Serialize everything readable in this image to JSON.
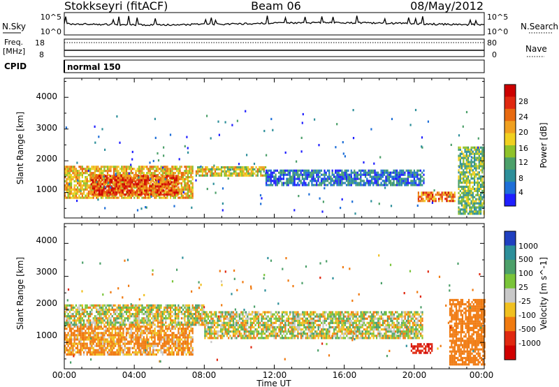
{
  "header": {
    "station": "Stokkseyri (fitACF)",
    "beam": "Beam 06",
    "date": "08/May/2012"
  },
  "noise_panel": {
    "left_label": "N.Sky",
    "right_label": "N.Search",
    "left_ticks": [
      "10^5",
      "10^0"
    ],
    "right_ticks": [
      "10^5",
      "10^0"
    ]
  },
  "freq_panel": {
    "left_label_1": "Freq.",
    "left_label_2": "[MHz]",
    "left_ticks": [
      "18",
      "8"
    ],
    "right_ticks": [
      "80",
      "0"
    ],
    "right_label": "Nave"
  },
  "cpid_panel": {
    "label": "CPID",
    "program": "normal 150"
  },
  "axes": {
    "xlabel": "Time UT",
    "ylabel": "Slant Range [km]",
    "xticks": [
      "00:00",
      "04:00",
      "08:00",
      "12:00",
      "16:00",
      "20:00",
      "00:00"
    ],
    "yticks": [
      "1000",
      "2000",
      "3000",
      "4000"
    ]
  },
  "power_colorbar": {
    "label": "Power [dB]",
    "ticks": [
      "4",
      "8",
      "12",
      "16",
      "20",
      "24",
      "28"
    ],
    "colors": [
      "#1f1fff",
      "#1e6fd8",
      "#2d8f9a",
      "#4ca06a",
      "#8fc22a",
      "#f0d020",
      "#f0a020",
      "#e86a10",
      "#e02810",
      "#cc0000"
    ]
  },
  "velocity_colorbar": {
    "label": "Velocity [m s^-1]",
    "ticks": [
      "1000",
      "500",
      "100",
      "25",
      "-25",
      "-100",
      "-500",
      "-1000"
    ],
    "colors": [
      "#2040c0",
      "#2d8f9a",
      "#4ca06a",
      "#7ac43a",
      "#c8c8c8",
      "#f0c020",
      "#f07a10",
      "#e02810",
      "#d00000"
    ]
  },
  "chart_data": [
    {
      "type": "heatmap",
      "title": "Power",
      "xlabel": "Time UT",
      "ylabel": "Slant Range [km]",
      "xlim": [
        "00:00",
        "24:00"
      ],
      "ylim": [
        200,
        4600
      ],
      "colorbar": "Power [dB]",
      "colorbar_range": [
        0,
        30
      ],
      "regions": [
        {
          "t_start": 0.0,
          "t_end": 7.3,
          "range_low": 800,
          "range_high": 1800,
          "typical_dB": 18
        },
        {
          "t_start": 1.5,
          "t_end": 6.5,
          "range_low": 900,
          "range_high": 1500,
          "typical_dB": 24
        },
        {
          "t_start": 7.5,
          "t_end": 11.5,
          "range_low": 1500,
          "range_high": 1800,
          "typical_dB": 16
        },
        {
          "t_start": 11.5,
          "t_end": 20.5,
          "range_low": 1200,
          "range_high": 1700,
          "typical_dB": 6
        },
        {
          "t_start": 20.2,
          "t_end": 22.3,
          "range_low": 700,
          "range_high": 1000,
          "typical_dB": 22
        },
        {
          "t_start": 22.5,
          "t_end": 24.0,
          "range_low": 300,
          "range_high": 2400,
          "typical_dB": 12
        }
      ]
    },
    {
      "type": "heatmap",
      "title": "Velocity",
      "xlabel": "Time UT",
      "ylabel": "Slant Range [km]",
      "xlim": [
        "00:00",
        "24:00"
      ],
      "ylim": [
        200,
        4600
      ],
      "colorbar": "Velocity [m s^-1]",
      "colorbar_range": [
        -1000,
        1000
      ],
      "regions": [
        {
          "t_start": 0.0,
          "t_end": 7.3,
          "range_low": 600,
          "range_high": 1500,
          "typical_velocity": -150
        },
        {
          "t_start": 0.0,
          "t_end": 8.0,
          "range_low": 1500,
          "range_high": 2100,
          "typical_velocity": 0
        },
        {
          "t_start": 8.0,
          "t_end": 20.5,
          "range_low": 1100,
          "range_high": 1900,
          "typical_velocity": 0
        },
        {
          "t_start": 19.8,
          "t_end": 21.0,
          "range_low": 650,
          "range_high": 950,
          "typical_velocity": -900
        },
        {
          "t_start": 22.0,
          "t_end": 24.0,
          "range_low": 300,
          "range_high": 2300,
          "typical_velocity": -300
        }
      ]
    }
  ]
}
